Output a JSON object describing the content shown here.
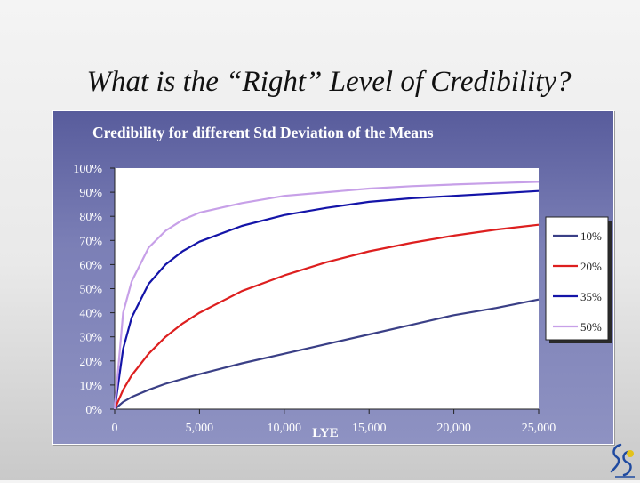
{
  "slide": {
    "title": "What is the “Right” Level of Credibility?"
  },
  "logo": {
    "icon": "company-logo-icon"
  },
  "chart_data": {
    "type": "line",
    "title": "Credibility for different Std Deviation of the Means",
    "xlabel": "LYE",
    "ylabel": "",
    "xlim": [
      0,
      25000
    ],
    "ylim": [
      0,
      100
    ],
    "x_ticks": [
      0,
      5000,
      10000,
      15000,
      20000,
      25000
    ],
    "x_tick_labels": [
      "0",
      "5,000",
      "10,000",
      "15,000",
      "20,000",
      "25,000"
    ],
    "y_ticks": [
      0,
      10,
      20,
      30,
      40,
      50,
      60,
      70,
      80,
      90,
      100
    ],
    "y_tick_labels": [
      "0%",
      "10%",
      "20%",
      "30%",
      "40%",
      "50%",
      "60%",
      "70%",
      "80%",
      "90%",
      "100%"
    ],
    "grid": false,
    "legend_position": "right",
    "x": [
      0,
      500,
      1000,
      2000,
      3000,
      4000,
      5000,
      7500,
      10000,
      12500,
      15000,
      17500,
      20000,
      22500,
      25000
    ],
    "series": [
      {
        "name": "10%",
        "color": "#3a3f86",
        "values": [
          0,
          3,
          5,
          8,
          10.5,
          12.5,
          14.5,
          19,
          23,
          27,
          31,
          35,
          39,
          42,
          45.5
        ]
      },
      {
        "name": "20%",
        "color": "#dd1f1f",
        "values": [
          0,
          8,
          14,
          23,
          30,
          35.5,
          40,
          49,
          55.5,
          61,
          65.5,
          69,
          72,
          74.5,
          76.5
        ]
      },
      {
        "name": "35%",
        "color": "#1414a8",
        "values": [
          0,
          25,
          38,
          52,
          60,
          65.5,
          69.5,
          76,
          80.5,
          83.5,
          86,
          87.5,
          88.5,
          89.5,
          90.5
        ]
      },
      {
        "name": "50%",
        "color": "#c7a0e8",
        "values": [
          0,
          40,
          53,
          67,
          74,
          78.5,
          81.5,
          85.5,
          88.5,
          90,
          91.5,
          92.5,
          93.2,
          93.8,
          94.3
        ]
      }
    ]
  }
}
